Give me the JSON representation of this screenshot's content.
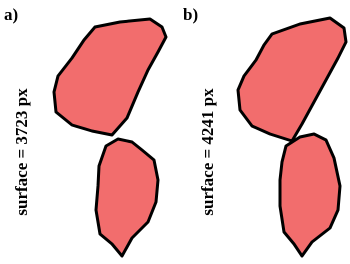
{
  "panels": [
    {
      "label": "a)",
      "caption": "surface = 3723 px"
    },
    {
      "label": "b)",
      "caption": "surface = 4241 px"
    }
  ]
}
